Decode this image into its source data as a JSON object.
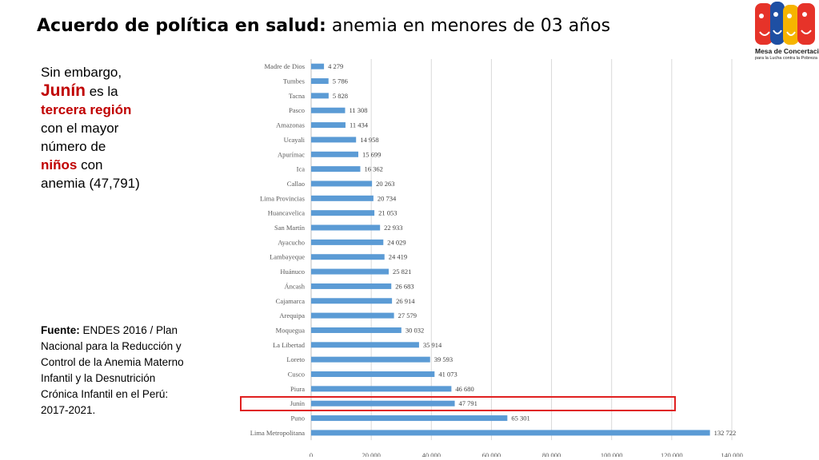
{
  "slide": {
    "title_bold": "Acuerdo de política en salud:",
    "title_rest": " anemia en menores de 03 años",
    "intro": {
      "t1": "Sin embargo, ",
      "region": "Junín",
      "t2": " es la ",
      "rank": "tercera región",
      "t3": " con el mayor número de ",
      "kids": "niños",
      "t4": " con anemia (47,791)"
    },
    "source": {
      "label": "Fuente:",
      "text": " ENDES 2016 / Plan Nacional para la Reducción y Control de la Anemia Materno Infantil y la Desnutrición Crónica Infantil en el Perú: 2017-2021."
    },
    "logo": {
      "line1": "Mesa de Concertación",
      "line2": "para la Lucha contra la Pobreza"
    }
  },
  "colors": {
    "bar": "#5b9bd5",
    "highlight": "#e02020",
    "grid": "#d9d9d9",
    "text": "#595959"
  },
  "chart_data": {
    "type": "bar",
    "orientation": "horizontal",
    "categories": [
      "Madre de Dios",
      "Tumbes",
      "Tacna",
      "Pasco",
      "Amazonas",
      "Ucayali",
      "Apurímac",
      "Ica",
      "Callao",
      "Lima Provincias",
      "Huancavelica",
      "San Martín",
      "Ayacucho",
      "Lambayeque",
      "Huánuco",
      "Áncash",
      "Cajamarca",
      "Arequipa",
      "Moquegua",
      "La Libertad",
      "Loreto",
      "Cusco",
      "Piura",
      "Junín",
      "Puno",
      "Lima Metropolitana"
    ],
    "values": [
      4279,
      5786,
      5828,
      11308,
      11434,
      14958,
      15699,
      16362,
      20263,
      20734,
      21053,
      22933,
      24029,
      24419,
      25821,
      26683,
      26914,
      27579,
      30032,
      35914,
      39593,
      41073,
      46680,
      47791,
      65301,
      132722
    ],
    "value_labels": [
      "4 279",
      "5 786",
      "5 828",
      "11 308",
      "11 434",
      "14 958",
      "15 699",
      "16 362",
      "20 263",
      "20 734",
      "21 053",
      "22 933",
      "24 029",
      "24 419",
      "25 821",
      "26 683",
      "26 914",
      "27 579",
      "30 032",
      "35 914",
      "39 593",
      "41 073",
      "46 680",
      "47 791",
      "65 301",
      "132 722"
    ],
    "x_ticks": [
      0,
      20000,
      40000,
      60000,
      80000,
      100000,
      120000,
      140000
    ],
    "x_tick_labels": [
      "0",
      "20 000",
      "40 000",
      "60 000",
      "80 000",
      "100 000",
      "120 000",
      "140 000"
    ],
    "xlim": [
      0,
      140000
    ],
    "grid": true,
    "highlighted_category": "Junín",
    "title": "",
    "xlabel": "",
    "ylabel": ""
  }
}
